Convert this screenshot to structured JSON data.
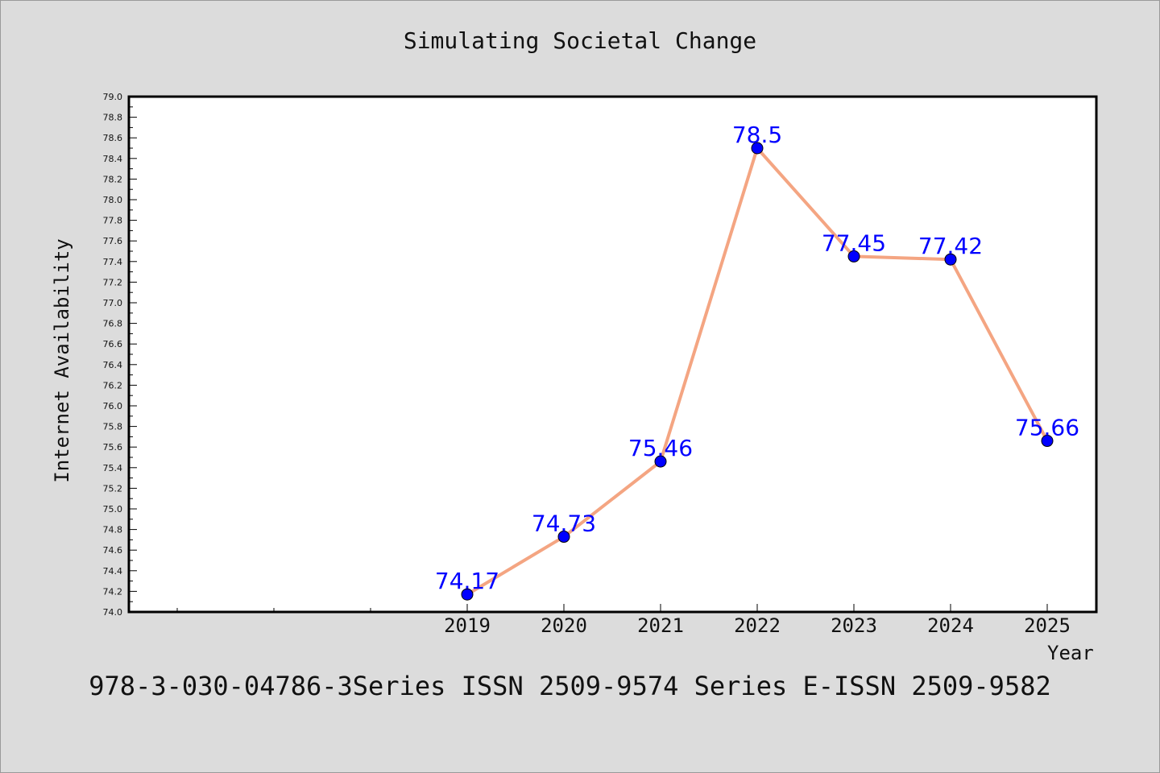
{
  "chart_data": {
    "type": "line",
    "title": "Simulating Societal Change",
    "xlabel": "Year",
    "ylabel": "Internet Availability",
    "categories": [
      "2019",
      "2020",
      "2021",
      "2022",
      "2023",
      "2024",
      "2025"
    ],
    "series": [
      {
        "values": [
          74.17,
          74.73,
          75.46,
          78.5,
          77.45,
          77.42,
          75.66
        ],
        "labels": [
          "74.17",
          "74.73",
          "75.46",
          "78.5",
          "77.45",
          "77.42",
          "75.66"
        ],
        "line_color": "#f4a582",
        "marker_color": "#0000ff"
      }
    ],
    "ylim": [
      74.0,
      79.0
    ],
    "yticks": [
      "74.0",
      "74.2",
      "74.4",
      "74.6",
      "74.8",
      "75.0",
      "75.2",
      "75.4",
      "75.6",
      "75.8",
      "76.0",
      "76.2",
      "76.4",
      "76.6",
      "76.8",
      "77.0",
      "77.2",
      "77.4",
      "77.6",
      "77.8",
      "78.0",
      "78.2",
      "78.4",
      "78.6",
      "78.8",
      "79.0"
    ],
    "grid": false,
    "legend": "none",
    "label_color": "#0000ff"
  },
  "footer_note": "978-3-030-04786-3Series ISSN 2509-9574 Series E-ISSN 2509-9582"
}
